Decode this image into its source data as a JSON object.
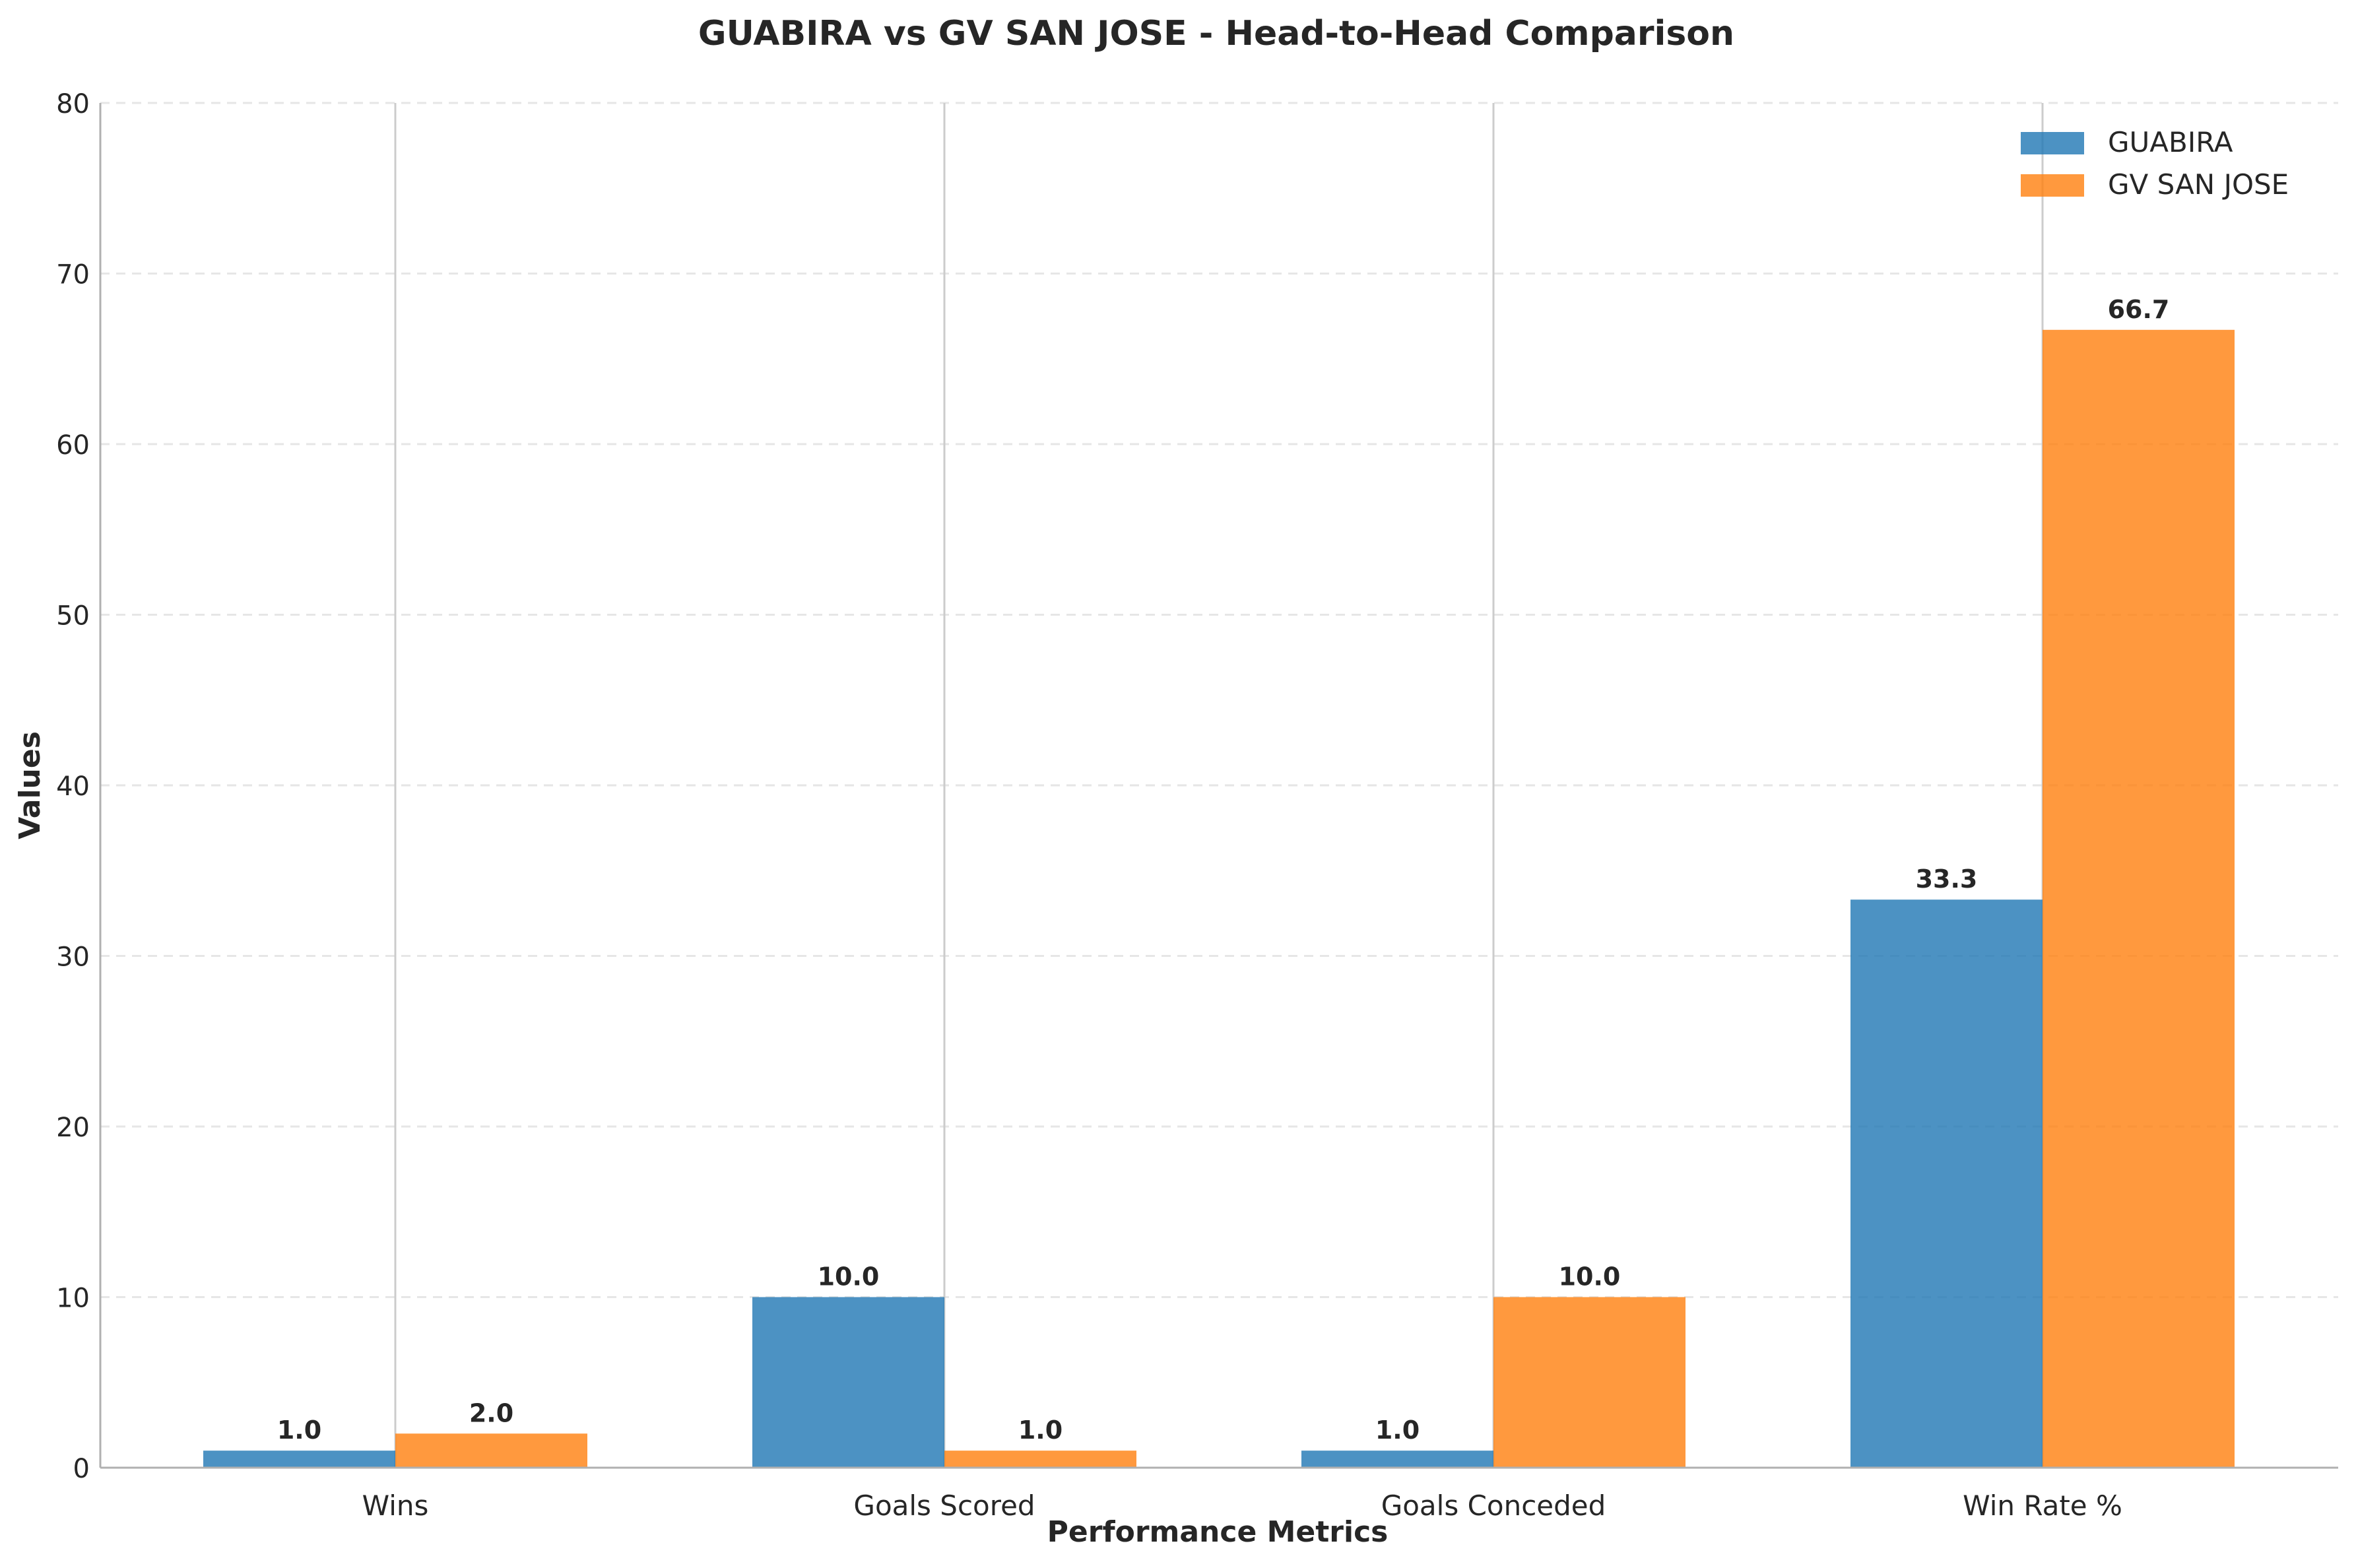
{
  "chart_data": {
    "type": "bar",
    "title": "GUABIRA vs GV SAN JOSE - Head-to-Head Comparison",
    "xlabel": "Performance Metrics",
    "ylabel": "Values",
    "categories": [
      "Wins",
      "Goals Scored",
      "Goals Conceded",
      "Win Rate %"
    ],
    "series": [
      {
        "name": "GUABIRA",
        "color": "#1f77b4",
        "values": [
          1.0,
          10.0,
          1.0,
          33.3
        ],
        "labels": [
          "1.0",
          "10.0",
          "1.0",
          "33.3"
        ]
      },
      {
        "name": "GV SAN JOSE",
        "color": "#ff7f0e",
        "values": [
          2.0,
          1.0,
          10.0,
          66.7
        ],
        "labels": [
          "2.0",
          "1.0",
          "10.0",
          "66.7"
        ]
      }
    ],
    "ylim": [
      0,
      80
    ],
    "yticks": [
      0,
      10,
      20,
      30,
      40,
      50,
      60,
      70,
      80
    ],
    "grid": "y-dashed",
    "legend_position": "top-right"
  }
}
